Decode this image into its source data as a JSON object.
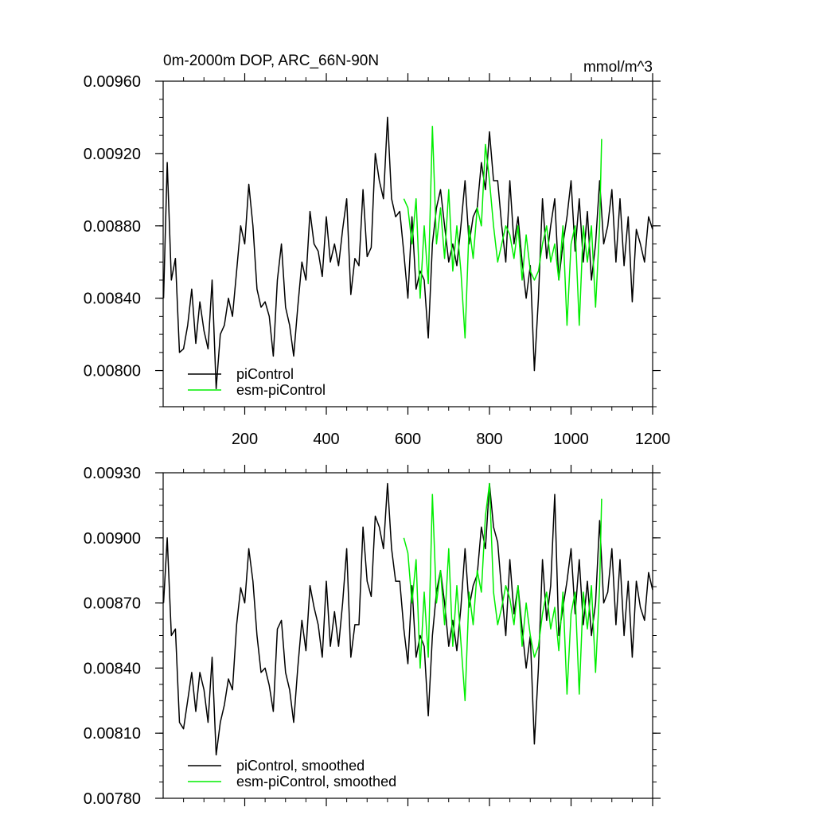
{
  "chart_data": [
    {
      "type": "line",
      "title": "0m-2000m DOP, ARC_66N-90N",
      "units_label": "mmol/m^3",
      "xlim": [
        0,
        1200
      ],
      "ylim": [
        0.0078,
        0.0096
      ],
      "yticks": [
        {
          "value": 0.008,
          "label": "0.00800"
        },
        {
          "value": 0.0084,
          "label": "0.00840"
        },
        {
          "value": 0.0088,
          "label": "0.00880"
        },
        {
          "value": 0.0092,
          "label": "0.00920"
        },
        {
          "value": 0.0096,
          "label": "0.00960"
        }
      ],
      "xticks": [
        {
          "value": 200,
          "label": "200"
        },
        {
          "value": 400,
          "label": "400"
        },
        {
          "value": 600,
          "label": "600"
        },
        {
          "value": 800,
          "label": "800"
        },
        {
          "value": 1000,
          "label": "1000"
        },
        {
          "value": 1200,
          "label": "1200"
        }
      ],
      "legend_position": "bottom-left",
      "series": [
        {
          "name": "piControl",
          "color": "#000000",
          "x": [
            1,
            10,
            20,
            30,
            40,
            50,
            60,
            70,
            80,
            90,
            100,
            110,
            120,
            130,
            140,
            150,
            160,
            170,
            180,
            190,
            200,
            210,
            220,
            230,
            240,
            250,
            260,
            270,
            280,
            290,
            300,
            310,
            320,
            330,
            340,
            350,
            360,
            370,
            380,
            390,
            400,
            410,
            420,
            430,
            440,
            450,
            460,
            470,
            480,
            490,
            500,
            510,
            520,
            530,
            540,
            550,
            560,
            570,
            580,
            590,
            600,
            610,
            620,
            630,
            640,
            650,
            660,
            670,
            680,
            690,
            700,
            710,
            720,
            730,
            740,
            750,
            760,
            770,
            780,
            790,
            800,
            810,
            820,
            830,
            840,
            850,
            860,
            870,
            880,
            890,
            900,
            910,
            920,
            930,
            940,
            950,
            960,
            970,
            980,
            990,
            1000,
            1010,
            1020,
            1030,
            1040,
            1050,
            1060,
            1070,
            1080,
            1090,
            1100,
            1110,
            1120,
            1130,
            1140,
            1150,
            1160,
            1170,
            1180,
            1190,
            1200
          ],
          "y": [
            0.0084,
            0.00915,
            0.0085,
            0.00862,
            0.0081,
            0.00812,
            0.00825,
            0.00845,
            0.00815,
            0.00838,
            0.00822,
            0.00812,
            0.0085,
            0.0079,
            0.0082,
            0.00825,
            0.0084,
            0.0083,
            0.00855,
            0.0088,
            0.0087,
            0.00903,
            0.0088,
            0.00845,
            0.00835,
            0.00838,
            0.0083,
            0.00808,
            0.0085,
            0.0087,
            0.00835,
            0.00825,
            0.00808,
            0.00835,
            0.0086,
            0.0085,
            0.00888,
            0.0087,
            0.00866,
            0.00852,
            0.00885,
            0.0086,
            0.0087,
            0.00858,
            0.00878,
            0.00895,
            0.00842,
            0.00862,
            0.00858,
            0.009,
            0.00863,
            0.00868,
            0.0092,
            0.00905,
            0.00895,
            0.0094,
            0.00895,
            0.00885,
            0.00888,
            0.00865,
            0.0084,
            0.00885,
            0.00845,
            0.00855,
            0.0085,
            0.00818,
            0.0087,
            0.0089,
            0.009,
            0.0088,
            0.0086,
            0.0087,
            0.00858,
            0.0088,
            0.00905,
            0.0087,
            0.00885,
            0.0089,
            0.00915,
            0.009,
            0.00932,
            0.00905,
            0.00905,
            0.0088,
            0.0086,
            0.00905,
            0.0087,
            0.00885,
            0.0086,
            0.0084,
            0.00858,
            0.008,
            0.0084,
            0.00895,
            0.00862,
            0.0088,
            0.00895,
            0.0085,
            0.0087,
            0.00885,
            0.00905,
            0.00866,
            0.00895,
            0.0086,
            0.00888,
            0.0085,
            0.0087,
            0.00905,
            0.0087,
            0.0088,
            0.009,
            0.0086,
            0.00895,
            0.00858,
            0.00885,
            0.00838,
            0.00878,
            0.0087,
            0.0086,
            0.00885,
            0.00878
          ]
        },
        {
          "name": "esm-piControl",
          "color": "#00ee00",
          "x": [
            590,
            600,
            610,
            620,
            630,
            640,
            650,
            660,
            670,
            680,
            690,
            700,
            710,
            720,
            730,
            740,
            750,
            760,
            770,
            780,
            790,
            800,
            810,
            820,
            830,
            840,
            850,
            860,
            870,
            880,
            890,
            900,
            910,
            920,
            930,
            940,
            950,
            960,
            970,
            980,
            990,
            1000,
            1010,
            1020,
            1030,
            1040,
            1050,
            1060,
            1070,
            1075
          ],
          "y": [
            0.00895,
            0.0089,
            0.0087,
            0.00895,
            0.0084,
            0.0088,
            0.00848,
            0.00935,
            0.0087,
            0.0089,
            0.00862,
            0.009,
            0.00855,
            0.0088,
            0.00855,
            0.00818,
            0.0088,
            0.00862,
            0.0089,
            0.0088,
            0.00925,
            0.00905,
            0.0088,
            0.0086,
            0.0087,
            0.0088,
            0.00875,
            0.00862,
            0.0088,
            0.0085,
            0.00875,
            0.00855,
            0.0085,
            0.00855,
            0.0087,
            0.0088,
            0.0086,
            0.0087,
            0.0085,
            0.0088,
            0.00825,
            0.0087,
            0.0088,
            0.00825,
            0.0088,
            0.0086,
            0.0088,
            0.00835,
            0.0088,
            0.00928
          ]
        }
      ]
    },
    {
      "type": "line",
      "xlim": [
        0,
        1200
      ],
      "ylim": [
        0.0078,
        0.0093
      ],
      "yticks": [
        {
          "value": 0.0078,
          "label": "0.00780"
        },
        {
          "value": 0.0081,
          "label": "0.00810"
        },
        {
          "value": 0.0084,
          "label": "0.00840"
        },
        {
          "value": 0.0087,
          "label": "0.00870"
        },
        {
          "value": 0.009,
          "label": "0.00900"
        },
        {
          "value": 0.0093,
          "label": "0.00930"
        }
      ],
      "xticks": [
        {
          "value": 200
        },
        {
          "value": 400
        },
        {
          "value": 600
        },
        {
          "value": 800
        },
        {
          "value": 1000
        },
        {
          "value": 1200
        }
      ],
      "legend_position": "bottom-left",
      "series": [
        {
          "name": "piControl, smoothed",
          "color": "#000000",
          "x": [
            1,
            10,
            20,
            30,
            40,
            50,
            60,
            70,
            80,
            90,
            100,
            110,
            120,
            130,
            140,
            150,
            160,
            170,
            180,
            190,
            200,
            210,
            220,
            230,
            240,
            250,
            260,
            270,
            280,
            290,
            300,
            310,
            320,
            330,
            340,
            350,
            360,
            370,
            380,
            390,
            400,
            410,
            420,
            430,
            440,
            450,
            460,
            470,
            480,
            490,
            500,
            510,
            520,
            530,
            540,
            550,
            560,
            570,
            580,
            590,
            600,
            610,
            620,
            630,
            640,
            650,
            660,
            670,
            680,
            690,
            700,
            710,
            720,
            730,
            740,
            750,
            760,
            770,
            780,
            790,
            800,
            810,
            820,
            830,
            840,
            850,
            860,
            870,
            880,
            890,
            900,
            910,
            920,
            930,
            940,
            950,
            960,
            970,
            980,
            990,
            1000,
            1010,
            1020,
            1030,
            1040,
            1050,
            1060,
            1070,
            1080,
            1090,
            1100,
            1110,
            1120,
            1130,
            1140,
            1150,
            1160,
            1170,
            1180,
            1190,
            1200
          ],
          "y": [
            0.0087,
            0.009,
            0.00855,
            0.00858,
            0.00815,
            0.00812,
            0.00825,
            0.00838,
            0.0082,
            0.00838,
            0.0083,
            0.00815,
            0.00845,
            0.008,
            0.00815,
            0.00823,
            0.00835,
            0.0083,
            0.0086,
            0.00877,
            0.0087,
            0.00895,
            0.0088,
            0.00855,
            0.00838,
            0.0084,
            0.00832,
            0.0082,
            0.00858,
            0.00862,
            0.00838,
            0.0083,
            0.00815,
            0.0084,
            0.00862,
            0.00848,
            0.00878,
            0.00868,
            0.0086,
            0.00845,
            0.0088,
            0.0085,
            0.00866,
            0.0085,
            0.0087,
            0.00895,
            0.00845,
            0.0086,
            0.0086,
            0.00905,
            0.0088,
            0.00873,
            0.0091,
            0.00905,
            0.00895,
            0.00925,
            0.00895,
            0.0088,
            0.0088,
            0.00858,
            0.00842,
            0.00878,
            0.00845,
            0.00855,
            0.0085,
            0.00818,
            0.00855,
            0.00875,
            0.00885,
            0.0087,
            0.0085,
            0.00862,
            0.00848,
            0.00868,
            0.00895,
            0.00868,
            0.00878,
            0.00883,
            0.00905,
            0.00895,
            0.00925,
            0.00905,
            0.00898,
            0.00875,
            0.00855,
            0.0089,
            0.00865,
            0.00878,
            0.00858,
            0.0084,
            0.00855,
            0.00805,
            0.0084,
            0.0089,
            0.00862,
            0.00878,
            0.0092,
            0.00855,
            0.00868,
            0.0088,
            0.00895,
            0.00865,
            0.0089,
            0.0086,
            0.0088,
            0.00855,
            0.0087,
            0.00908,
            0.0087,
            0.00875,
            0.00895,
            0.0086,
            0.0089,
            0.00855,
            0.0088,
            0.00845,
            0.0088,
            0.00868,
            0.00862,
            0.00884,
            0.00876
          ]
        },
        {
          "name": "esm-piControl, smoothed",
          "color": "#00ee00",
          "x": [
            590,
            600,
            610,
            620,
            630,
            640,
            650,
            660,
            670,
            680,
            690,
            700,
            710,
            720,
            730,
            740,
            750,
            760,
            770,
            780,
            790,
            800,
            810,
            820,
            830,
            840,
            850,
            860,
            870,
            880,
            890,
            900,
            910,
            920,
            930,
            940,
            950,
            960,
            970,
            980,
            990,
            1000,
            1010,
            1020,
            1030,
            1040,
            1050,
            1060,
            1070,
            1075
          ],
          "y": [
            0.009,
            0.00893,
            0.0087,
            0.0089,
            0.0084,
            0.00875,
            0.00845,
            0.0092,
            0.0087,
            0.00885,
            0.0086,
            0.00895,
            0.0085,
            0.00878,
            0.00852,
            0.00825,
            0.00875,
            0.0086,
            0.00885,
            0.00875,
            0.0091,
            0.00925,
            0.00875,
            0.0086,
            0.00868,
            0.00878,
            0.00872,
            0.0086,
            0.00878,
            0.0085,
            0.0087,
            0.00855,
            0.00845,
            0.0085,
            0.00865,
            0.00875,
            0.00858,
            0.00868,
            0.00848,
            0.00875,
            0.00828,
            0.00865,
            0.00875,
            0.00828,
            0.00875,
            0.00858,
            0.00878,
            0.00838,
            0.00878,
            0.00918
          ]
        }
      ]
    }
  ]
}
